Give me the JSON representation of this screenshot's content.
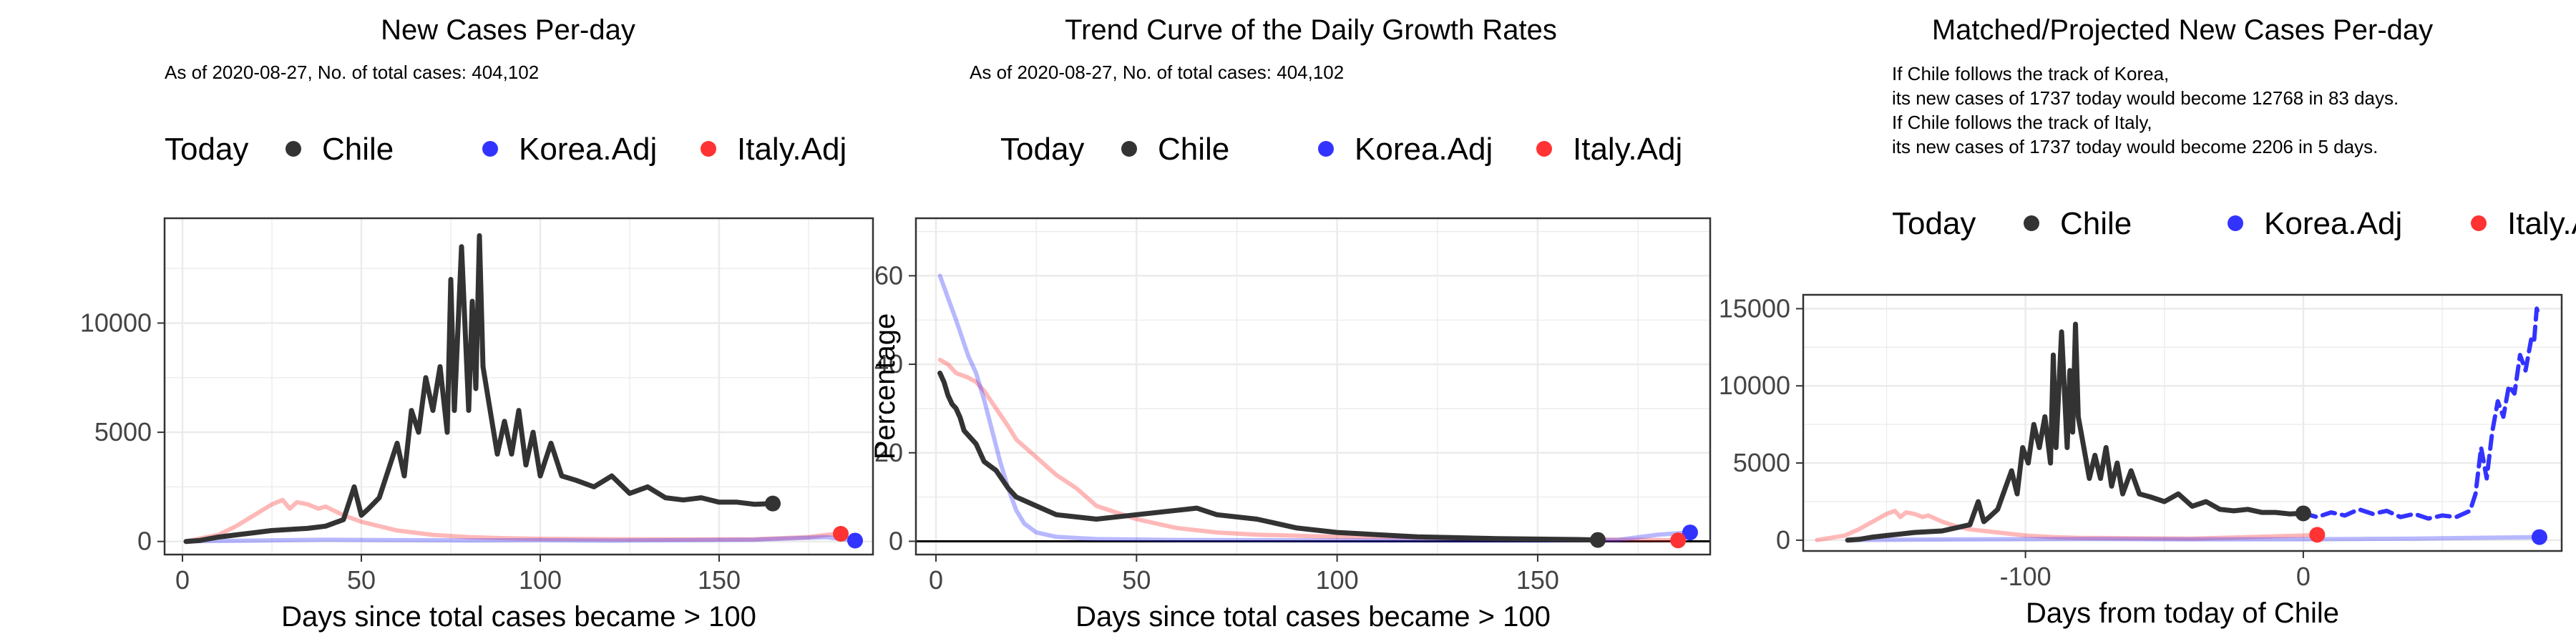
{
  "colors": {
    "chile": "#333333",
    "korea": "#3333ff",
    "italy": "#ff3333",
    "grid": "#ebebeb"
  },
  "chart_data": [
    {
      "type": "line",
      "title": "New Cases Per-day",
      "subtitle": [
        "As of 2020-08-27, No. of total cases: 404,102"
      ],
      "xlabel": "Days since total cases became > 100",
      "ylabel": "",
      "xlim": [
        -5,
        193
      ],
      "ylim": [
        -600,
        14800
      ],
      "xticks": [
        0,
        50,
        100,
        150
      ],
      "yticks": [
        0,
        5000,
        10000
      ],
      "legend": {
        "title": "Today",
        "position": "top",
        "entries": [
          "Chile",
          "Korea.Adj",
          "Italy.Adj"
        ]
      },
      "series": [
        {
          "name": "Chile",
          "x": [
            1,
            5,
            10,
            15,
            20,
            25,
            30,
            35,
            40,
            45,
            48,
            50,
            52,
            55,
            58,
            60,
            62,
            64,
            66,
            68,
            70,
            72,
            74,
            75,
            76,
            78,
            80,
            81,
            82,
            83,
            84,
            85,
            86,
            88,
            90,
            92,
            94,
            96,
            98,
            100,
            103,
            106,
            110,
            115,
            120,
            125,
            130,
            135,
            140,
            145,
            150,
            155,
            160,
            165
          ],
          "values": [
            0,
            50,
            200,
            300,
            400,
            500,
            550,
            600,
            700,
            1000,
            2500,
            1200,
            1500,
            2000,
            3500,
            4500,
            3000,
            6000,
            5000,
            7500,
            6000,
            8000,
            5000,
            12000,
            6000,
            13500,
            6000,
            11000,
            7000,
            14000,
            8000,
            7000,
            6000,
            4000,
            5500,
            4000,
            6000,
            3500,
            5000,
            3000,
            4500,
            3000,
            2800,
            2500,
            3000,
            2200,
            2500,
            2000,
            1900,
            2000,
            1800,
            1800,
            1700,
            1737
          ]
        },
        {
          "name": "Korea.Adj",
          "x": [
            1,
            20,
            40,
            60,
            80,
            100,
            120,
            140,
            160,
            180,
            188
          ],
          "values": [
            10,
            40,
            80,
            60,
            50,
            60,
            40,
            60,
            80,
            200,
            40
          ]
        },
        {
          "name": "Italy.Adj",
          "x": [
            1,
            10,
            15,
            20,
            25,
            28,
            30,
            32,
            35,
            38,
            40,
            45,
            50,
            55,
            60,
            70,
            80,
            90,
            100,
            120,
            140,
            160,
            175,
            180,
            184
          ],
          "values": [
            10,
            300,
            700,
            1200,
            1700,
            1900,
            1500,
            1800,
            1700,
            1500,
            1600,
            1200,
            900,
            700,
            500,
            300,
            200,
            150,
            120,
            100,
            90,
            100,
            200,
            300,
            350
          ]
        }
      ]
    },
    {
      "type": "line",
      "title": "Trend Curve of the Daily Growth Rates",
      "subtitle": [
        "As of 2020-08-27, No. of total cases: 404,102"
      ],
      "xlabel": "Days since total cases became > 100",
      "ylabel": "Percentage",
      "xlim": [
        -5,
        193
      ],
      "ylim": [
        -3,
        73
      ],
      "xticks": [
        0,
        50,
        100,
        150
      ],
      "yticks": [
        0,
        20,
        40,
        60
      ],
      "legend": {
        "title": "Today",
        "position": "top",
        "entries": [
          "Chile",
          "Korea.Adj",
          "Italy.Adj"
        ]
      },
      "series": [
        {
          "name": "Chile",
          "x": [
            1,
            2,
            3,
            4,
            5,
            6,
            7,
            8,
            10,
            12,
            15,
            18,
            20,
            25,
            30,
            40,
            50,
            60,
            65,
            70,
            80,
            90,
            100,
            110,
            120,
            130,
            140,
            150,
            160,
            165
          ],
          "values": [
            38,
            36,
            33,
            31,
            30,
            28,
            25,
            24,
            22,
            18,
            16,
            12,
            10,
            8,
            6,
            5,
            6,
            7,
            7.5,
            6,
            5,
            3,
            2,
            1.5,
            1,
            0.8,
            0.6,
            0.5,
            0.4,
            0.3
          ]
        },
        {
          "name": "Korea.Adj",
          "x": [
            1,
            3,
            5,
            8,
            10,
            12,
            14,
            16,
            18,
            20,
            22,
            25,
            30,
            40,
            60,
            100,
            150,
            170,
            180,
            188
          ],
          "values": [
            60,
            55,
            50,
            42,
            38,
            32,
            25,
            18,
            12,
            7,
            4,
            2,
            1,
            0.5,
            0.3,
            0.2,
            0.2,
            0.3,
            1.5,
            2
          ]
        },
        {
          "name": "Italy.Adj",
          "x": [
            1,
            3,
            5,
            8,
            10,
            12,
            15,
            18,
            20,
            25,
            30,
            35,
            40,
            50,
            60,
            70,
            80,
            100,
            150,
            180,
            185
          ],
          "values": [
            41,
            40,
            38,
            37,
            36,
            34,
            30,
            26,
            23,
            19,
            15,
            12,
            8,
            5,
            3,
            2,
            1.5,
            1,
            0.5,
            0.3,
            0.2
          ]
        }
      ]
    },
    {
      "type": "line",
      "title": "Matched/Projected New Cases Per-day",
      "subtitle": [
        "If Chile follows the track of Korea,",
        "its new cases of 1737 today would become 12768 in 83 days.",
        "If Chile follows the track of Italy,",
        "its new cases of 1737 today would become 2206 in 5 days."
      ],
      "xlabel": "Days from today of Chile",
      "ylabel": "",
      "xlim": [
        -180,
        93
      ],
      "ylim": [
        -700,
        15900
      ],
      "xticks": [
        -100,
        0
      ],
      "yticks": [
        0,
        5000,
        10000,
        15000
      ],
      "legend": {
        "title": "Today",
        "position": "top",
        "entries": [
          "Chile",
          "Korea.Adj",
          "Italy.Adj"
        ]
      },
      "series": [
        {
          "name": "Chile",
          "x": [
            -164,
            -160,
            -155,
            -150,
            -145,
            -140,
            -130,
            -120,
            -117,
            -115,
            -113,
            -110,
            -107,
            -105,
            -103,
            -101,
            -99,
            -97,
            -95,
            -93,
            -91,
            -90,
            -89,
            -87,
            -85,
            -84,
            -83,
            -82,
            -81,
            -80,
            -79,
            -77,
            -75,
            -73,
            -71,
            -69,
            -67,
            -65,
            -62,
            -59,
            -55,
            -50,
            -45,
            -40,
            -35,
            -30,
            -25,
            -20,
            -15,
            -10,
            -5,
            0
          ],
          "values": [
            0,
            50,
            200,
            300,
            400,
            500,
            600,
            1000,
            2500,
            1200,
            1500,
            2000,
            3500,
            4500,
            3000,
            6000,
            5000,
            7500,
            6000,
            8000,
            5000,
            12000,
            6000,
            13500,
            6000,
            11000,
            7000,
            14000,
            8000,
            7000,
            6000,
            4000,
            5500,
            4000,
            6000,
            3500,
            5000,
            3000,
            4500,
            3000,
            2800,
            2500,
            3000,
            2200,
            2500,
            2000,
            1900,
            2000,
            1800,
            1800,
            1700,
            1737
          ]
        },
        {
          "name": "Korea.Adj",
          "x": [
            0,
            5,
            10,
            15,
            20,
            25,
            30,
            35,
            40,
            45,
            50,
            55,
            60,
            62,
            64,
            66,
            68,
            70,
            72,
            74,
            76,
            78,
            80,
            82,
            83,
            84,
            85
          ],
          "values": [
            1737,
            1500,
            1800,
            1600,
            2000,
            1700,
            1900,
            1500,
            1700,
            1400,
            1600,
            1500,
            1900,
            3000,
            6000,
            4000,
            7000,
            9000,
            8000,
            10000,
            9500,
            12000,
            11000,
            13000,
            12768,
            15000,
            14500
          ]
        },
        {
          "name": "Korea.Adj",
          "x": [
            -164,
            -120,
            -80,
            -40,
            0,
            20,
            40,
            60,
            85
          ],
          "values": [
            10,
            50,
            80,
            50,
            60,
            80,
            100,
            150,
            200
          ]
        },
        {
          "name": "Italy.Adj",
          "x": [
            -175,
            -165,
            -160,
            -155,
            -150,
            -147,
            -145,
            -143,
            -140,
            -137,
            -135,
            -130,
            -125,
            -120,
            -110,
            -100,
            -90,
            -80,
            -60,
            -40,
            -20,
            0,
            5
          ],
          "values": [
            10,
            300,
            700,
            1200,
            1700,
            1900,
            1500,
            1800,
            1700,
            1500,
            1600,
            1200,
            900,
            700,
            500,
            300,
            200,
            150,
            120,
            100,
            200,
            300,
            350
          ]
        }
      ]
    }
  ]
}
